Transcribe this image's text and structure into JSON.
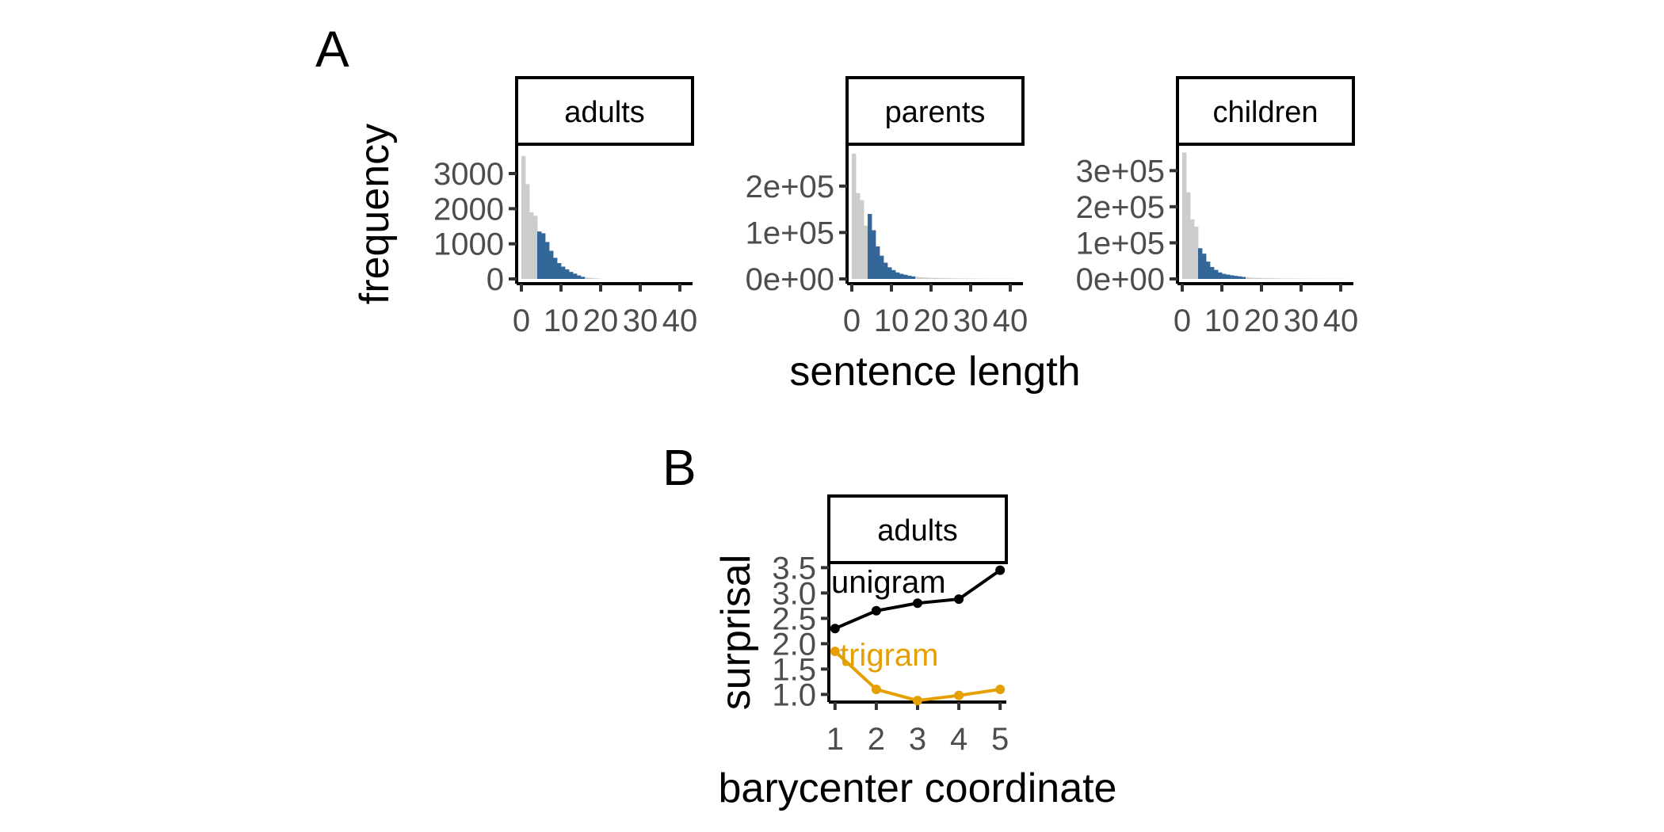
{
  "panel_a": {
    "letter": "A"
  },
  "panel_b": {
    "letter": "B"
  },
  "chart_data": [
    {
      "type": "bar",
      "panel": "A",
      "xlabel": "sentence length",
      "ylabel": "frequency",
      "xlim": [
        0,
        42
      ],
      "highlight_range": [
        4,
        15
      ],
      "colors": {
        "base": "#cccccc",
        "highlight": "#336699"
      },
      "x_ticks": [
        0,
        10,
        20,
        30,
        40
      ],
      "facets": [
        {
          "name": "adults",
          "ylim": [
            0,
            3700
          ],
          "y_ticks": [
            0,
            1000,
            2000,
            3000
          ],
          "y_tick_labels": [
            "0",
            "1000",
            "2000",
            "3000"
          ],
          "bins": [
            0,
            1,
            2,
            3,
            4,
            5,
            6,
            7,
            8,
            9,
            10,
            11,
            12,
            13,
            14,
            15,
            16,
            17,
            18,
            19
          ],
          "values": [
            3500,
            2700,
            1900,
            1800,
            1350,
            1300,
            1050,
            800,
            600,
            450,
            350,
            270,
            200,
            150,
            100,
            60,
            40,
            30,
            20,
            10
          ]
        },
        {
          "name": "parents",
          "ylim": [
            0,
            280000
          ],
          "y_ticks": [
            0,
            100000,
            200000
          ],
          "y_tick_labels": [
            "0e+00",
            "1e+05",
            "2e+05"
          ],
          "bins": [
            0,
            1,
            2,
            3,
            4,
            5,
            6,
            7,
            8,
            9,
            10,
            11,
            12,
            13,
            14,
            15,
            16,
            17,
            18,
            19,
            20,
            21,
            22,
            23,
            24,
            25,
            26,
            27,
            28,
            29,
            30,
            31,
            32,
            33,
            34,
            35,
            36,
            37,
            38,
            39,
            40
          ],
          "values": [
            270000,
            185000,
            170000,
            115000,
            140000,
            105000,
            70000,
            50000,
            35000,
            25000,
            19000,
            14000,
            11000,
            9000,
            7000,
            5500,
            4500,
            3500,
            3000,
            2500,
            2200,
            2000,
            1800,
            1600,
            1400,
            1200,
            1100,
            1000,
            900,
            800,
            700,
            650,
            600,
            550,
            500,
            450,
            400,
            380,
            360,
            340,
            320
          ]
        },
        {
          "name": "children",
          "ylim": [
            0,
            360000
          ],
          "y_ticks": [
            0,
            100000,
            200000,
            300000
          ],
          "y_tick_labels": [
            "0e+00",
            "1e+05",
            "2e+05",
            "3e+05"
          ],
          "bins": [
            0,
            1,
            2,
            3,
            4,
            5,
            6,
            7,
            8,
            9,
            10,
            11,
            12,
            13,
            14,
            15,
            16,
            17,
            18,
            19,
            20,
            21,
            22,
            23,
            24,
            25,
            26,
            27,
            28,
            29,
            30,
            31,
            32,
            33,
            34,
            35,
            36,
            37,
            38,
            39,
            40
          ],
          "values": [
            350000,
            240000,
            165000,
            145000,
            85000,
            70000,
            48000,
            33000,
            25000,
            18000,
            14000,
            12000,
            10000,
            8500,
            7000,
            5500,
            4500,
            3500,
            3000,
            2500,
            2200,
            2000,
            1800,
            1600,
            1400,
            1200,
            1100,
            1000,
            900,
            800,
            700,
            650,
            600,
            550,
            500,
            450,
            400,
            380,
            360,
            340,
            320
          ]
        }
      ]
    },
    {
      "type": "line",
      "panel": "B",
      "facet": "adults",
      "xlabel": "barycenter coordinate",
      "ylabel": "surprisal",
      "x": [
        1,
        2,
        3,
        4,
        5
      ],
      "xlim": [
        0.85,
        5.15
      ],
      "ylim": [
        0.85,
        3.6
      ],
      "y_ticks": [
        1.0,
        1.5,
        2.0,
        2.5,
        3.0,
        3.5
      ],
      "y_tick_labels": [
        "1.0",
        "1.5",
        "2.0",
        "2.5",
        "3.0",
        "3.5"
      ],
      "series": [
        {
          "name": "unigram",
          "color": "#000000",
          "values": [
            2.3,
            2.65,
            2.8,
            2.88,
            3.45
          ]
        },
        {
          "name": "trigram",
          "color": "#e69f00",
          "values": [
            1.85,
            1.1,
            0.88,
            0.98,
            1.1
          ]
        }
      ]
    }
  ]
}
